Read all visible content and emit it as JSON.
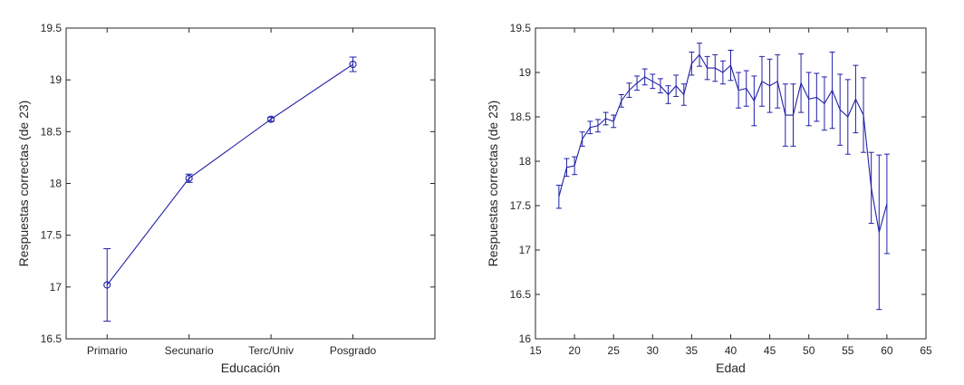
{
  "chart_data": [
    {
      "type": "line",
      "error_bars": true,
      "title": "",
      "xlabel": "Educación",
      "ylabel": "Respuestas correctas (de 23)",
      "ylim": [
        16.5,
        19.5
      ],
      "yticks": [
        16.5,
        17,
        17.5,
        18,
        18.5,
        19,
        19.5
      ],
      "ytick_labels": [
        "16.5",
        "17",
        "17.5",
        "18",
        "18.5",
        "19",
        "19.5"
      ],
      "categories": [
        "Primario",
        "Secunario",
        "Terc/Univ",
        "Posgrado"
      ],
      "marker": "circle",
      "line_color": "#2020a8",
      "series": [
        {
          "name": "Educación",
          "values": [
            17.02,
            18.05,
            18.62,
            19.15
          ],
          "errors": [
            0.35,
            0.04,
            0.02,
            0.07
          ]
        }
      ]
    },
    {
      "type": "line",
      "error_bars": true,
      "title": "",
      "xlabel": "Edad",
      "ylabel": "Respuestas correctas (de 23)",
      "xlim": [
        15,
        65
      ],
      "xticks": [
        15,
        20,
        25,
        30,
        35,
        40,
        45,
        50,
        55,
        60,
        65
      ],
      "xtick_labels": [
        "15",
        "20",
        "25",
        "30",
        "35",
        "40",
        "45",
        "50",
        "55",
        "60",
        "65"
      ],
      "ylim": [
        16,
        19.5
      ],
      "yticks": [
        16,
        16.5,
        17,
        17.5,
        18,
        18.5,
        19,
        19.5
      ],
      "ytick_labels": [
        "16",
        "16.5",
        "17",
        "17.5",
        "18",
        "18.5",
        "19",
        "19.5"
      ],
      "line_color": "#2020a8",
      "series": [
        {
          "name": "Edad",
          "x": [
            18,
            19,
            20,
            21,
            22,
            23,
            24,
            25,
            26,
            27,
            28,
            29,
            30,
            31,
            32,
            33,
            34,
            35,
            36,
            37,
            38,
            39,
            40,
            41,
            42,
            43,
            44,
            45,
            46,
            47,
            48,
            49,
            50,
            51,
            52,
            53,
            54,
            55,
            56,
            57,
            58,
            59,
            60
          ],
          "values": [
            17.6,
            17.93,
            17.95,
            18.25,
            18.38,
            18.4,
            18.48,
            18.45,
            18.68,
            18.8,
            18.88,
            18.95,
            18.9,
            18.85,
            18.75,
            18.85,
            18.75,
            19.1,
            19.2,
            19.05,
            19.05,
            19.0,
            19.08,
            18.8,
            18.82,
            18.68,
            18.9,
            18.85,
            18.9,
            18.52,
            18.52,
            18.88,
            18.7,
            18.72,
            18.65,
            18.8,
            18.58,
            18.5,
            18.7,
            18.52,
            17.7,
            17.2,
            17.52
          ],
          "errors": [
            0.13,
            0.1,
            0.1,
            0.08,
            0.07,
            0.07,
            0.07,
            0.07,
            0.07,
            0.08,
            0.08,
            0.09,
            0.08,
            0.08,
            0.1,
            0.12,
            0.12,
            0.13,
            0.13,
            0.13,
            0.15,
            0.13,
            0.17,
            0.2,
            0.2,
            0.28,
            0.28,
            0.3,
            0.3,
            0.35,
            0.35,
            0.33,
            0.3,
            0.27,
            0.3,
            0.43,
            0.4,
            0.42,
            0.38,
            0.42,
            0.4,
            0.87,
            0.56
          ]
        }
      ]
    }
  ]
}
